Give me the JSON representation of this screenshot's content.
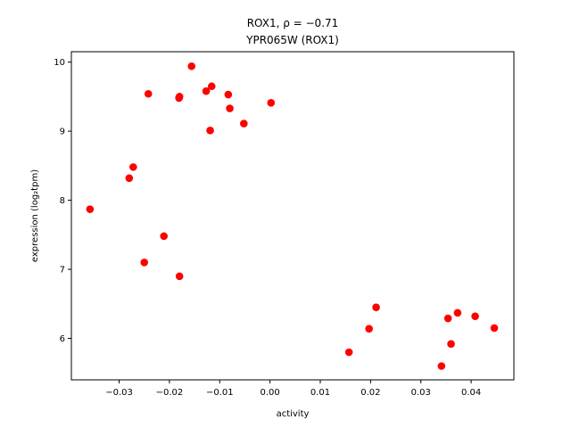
{
  "chart_data": {
    "type": "scatter",
    "title_line1": "ROX1, ρ = −0.71",
    "title_line2": "YPR065W (ROX1)",
    "xlabel": "activity",
    "ylabel": "expression (log₂tpm)",
    "xlim": [
      -0.0395,
      0.0485
    ],
    "ylim": [
      5.4,
      10.15
    ],
    "xticks": [
      -0.03,
      -0.02,
      -0.01,
      0.0,
      0.01,
      0.02,
      0.03,
      0.04
    ],
    "xtick_labels": [
      "−0.03",
      "−0.02",
      "−0.01",
      "0.00",
      "0.01",
      "0.02",
      "0.03",
      "0.04"
    ],
    "yticks": [
      6,
      7,
      8,
      9,
      10
    ],
    "ytick_labels": [
      "6",
      "7",
      "8",
      "9",
      "10"
    ],
    "grid": false,
    "point_color": "#ff0000",
    "points": [
      {
        "x": -0.0358,
        "y": 7.87
      },
      {
        "x": -0.028,
        "y": 8.32
      },
      {
        "x": -0.0272,
        "y": 8.48
      },
      {
        "x": -0.025,
        "y": 7.1
      },
      {
        "x": -0.0242,
        "y": 9.54
      },
      {
        "x": -0.0211,
        "y": 7.48
      },
      {
        "x": -0.0181,
        "y": 9.48
      },
      {
        "x": -0.018,
        "y": 9.5
      },
      {
        "x": -0.018,
        "y": 6.9
      },
      {
        "x": -0.0156,
        "y": 9.94
      },
      {
        "x": -0.0127,
        "y": 9.58
      },
      {
        "x": -0.0119,
        "y": 9.01
      },
      {
        "x": -0.0116,
        "y": 9.65
      },
      {
        "x": -0.0083,
        "y": 9.53
      },
      {
        "x": -0.008,
        "y": 9.33
      },
      {
        "x": -0.0052,
        "y": 9.11
      },
      {
        "x": 0.0002,
        "y": 9.41
      },
      {
        "x": 0.0157,
        "y": 5.8
      },
      {
        "x": 0.0197,
        "y": 6.14
      },
      {
        "x": 0.0211,
        "y": 6.45
      },
      {
        "x": 0.0341,
        "y": 5.6
      },
      {
        "x": 0.0354,
        "y": 6.29
      },
      {
        "x": 0.036,
        "y": 5.92
      },
      {
        "x": 0.0373,
        "y": 6.37
      },
      {
        "x": 0.0408,
        "y": 6.32
      },
      {
        "x": 0.0446,
        "y": 6.15
      }
    ]
  }
}
